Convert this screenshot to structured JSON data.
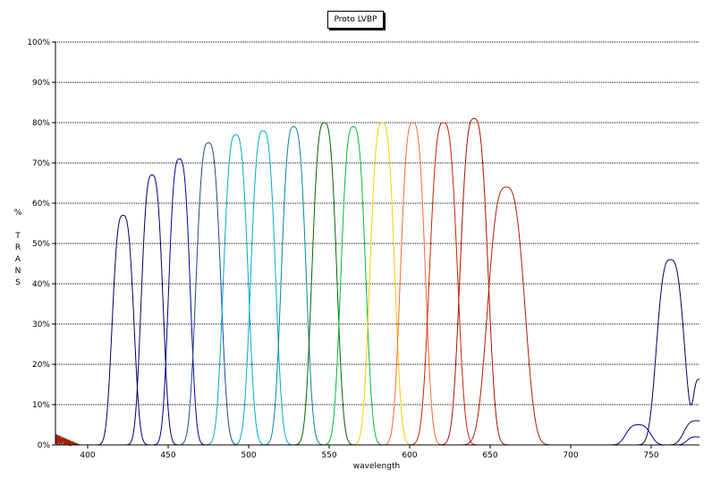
{
  "chart_data": {
    "type": "line",
    "title": "Proto LVBP",
    "xlabel": "wavelength",
    "ylabel": "% TRANS",
    "xlim": [
      380,
      780
    ],
    "ylim": [
      0,
      100
    ],
    "x_ticks": [
      400,
      450,
      500,
      550,
      600,
      650,
      700,
      750
    ],
    "y_ticks": [
      0,
      10,
      20,
      30,
      40,
      50,
      60,
      70,
      80,
      90,
      100
    ],
    "y_tick_labels": [
      "0%",
      "10%",
      "20%",
      "30%",
      "40%",
      "50%",
      "60%",
      "70%",
      "80%",
      "90%",
      "100%"
    ],
    "grid": "horizontal",
    "series": [
      {
        "color": "#000066",
        "center": 422,
        "peak": 57,
        "halfwidth": 7,
        "extra_peaks": [
          {
            "center": 762,
            "peak": 46,
            "halfwidth": 9
          },
          {
            "center": 780,
            "peak": 16,
            "halfwidth": 4
          }
        ]
      },
      {
        "color": "#000066",
        "center": 440,
        "peak": 67,
        "halfwidth": 7,
        "extra_peaks": [
          {
            "center": 778,
            "peak": 6,
            "halfwidth": 8
          }
        ]
      },
      {
        "color": "#000099",
        "center": 457,
        "peak": 71,
        "halfwidth": 7,
        "extra_peaks": [
          {
            "center": 742,
            "peak": 5,
            "halfwidth": 8
          },
          {
            "center": 778,
            "peak": 2,
            "halfwidth": 6
          }
        ]
      },
      {
        "color": "#224499",
        "center": 475,
        "peak": 75,
        "halfwidth": 8
      },
      {
        "color": "#00aacc",
        "center": 492,
        "peak": 77,
        "halfwidth": 8
      },
      {
        "color": "#00aacc",
        "center": 509,
        "peak": 78,
        "halfwidth": 8
      },
      {
        "color": "#008899",
        "center": 528,
        "peak": 79,
        "halfwidth": 8
      },
      {
        "color": "#006600",
        "center": 547,
        "peak": 80,
        "halfwidth": 8
      },
      {
        "color": "#00bb33",
        "center": 565,
        "peak": 79,
        "halfwidth": 8
      },
      {
        "color": "#ffcc00",
        "center": 583,
        "peak": 80,
        "halfwidth": 8
      },
      {
        "color": "#ff6633",
        "center": 602,
        "peak": 80,
        "halfwidth": 8
      },
      {
        "color": "#cc2200",
        "center": 621,
        "peak": 80,
        "halfwidth": 9
      },
      {
        "color": "#aa1100",
        "center": 640,
        "peak": 81,
        "halfwidth": 9
      },
      {
        "color": "#aa2200",
        "center": 660,
        "peak": 64,
        "halfwidth": 12
      }
    ]
  }
}
